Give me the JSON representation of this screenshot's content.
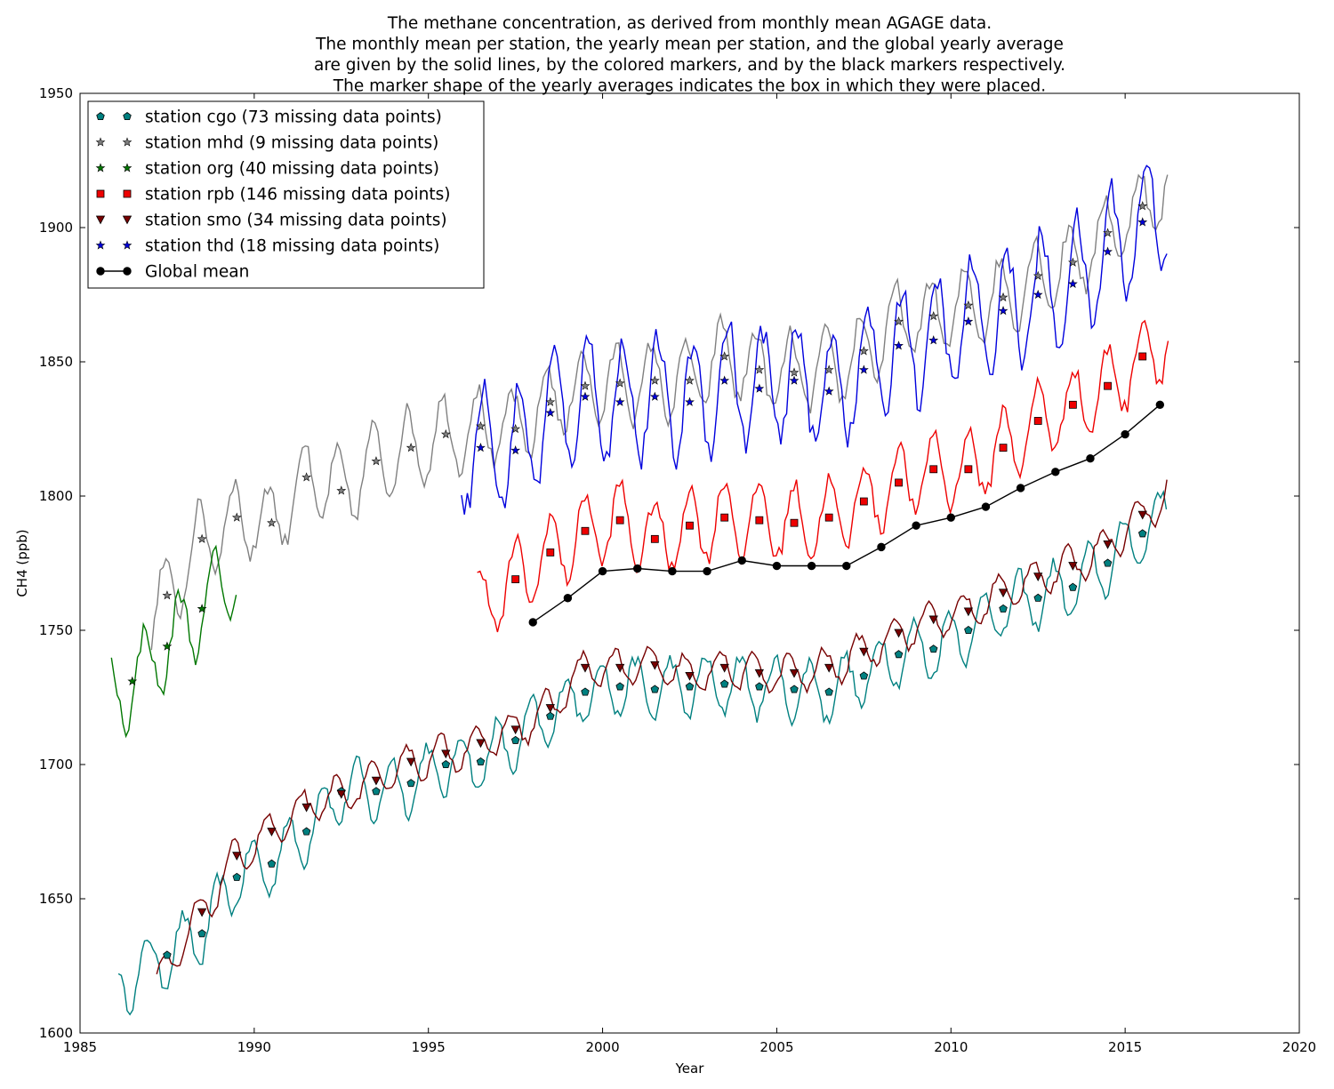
{
  "chart_data": {
    "type": "line",
    "title_lines": [
      "The methane concentration, as derived from monthly mean AGAGE data.",
      "The monthly mean per station, the yearly mean per station, and the global yearly average",
      "are given by the solid lines, by the colored markers, and by the black markers respectively.",
      "The marker shape of the yearly averages indicates the box in which they were placed."
    ],
    "xlabel": "Year",
    "ylabel": "CH4 (ppb)",
    "xlim": [
      1985,
      2020
    ],
    "ylim": [
      1600,
      1950
    ],
    "xticks": [
      "1985",
      "1990",
      "1995",
      "2000",
      "2005",
      "2010",
      "2015",
      "2020"
    ],
    "yticks": [
      "1600",
      "1650",
      "1700",
      "1750",
      "1800",
      "1850",
      "1900",
      "1950"
    ],
    "legend_position": "upper left",
    "grid": false,
    "series": [
      {
        "name": "station cgo (73 missing data points)",
        "color": "#008080",
        "marker": "pentagon",
        "monthly": {
          "start": 1986.1,
          "end": 2016.25,
          "base": 1603,
          "slope": 7.1,
          "amplitude": 11,
          "phase": 0.7,
          "plateau": [
            1999.5,
            2007,
            1727
          ],
          "recent_slope": 7.2
        },
        "yearly": [
          [
            1987.5,
            1629
          ],
          [
            1988.5,
            1637
          ],
          [
            1989.5,
            1658
          ],
          [
            1990.5,
            1663
          ],
          [
            1991.5,
            1675
          ],
          [
            1992.5,
            1690
          ],
          [
            1993.5,
            1690
          ],
          [
            1994.5,
            1693
          ],
          [
            1995.5,
            1700
          ],
          [
            1996.5,
            1701
          ],
          [
            1997.5,
            1709
          ],
          [
            1998.5,
            1718
          ],
          [
            1999.5,
            1727
          ],
          [
            2000.5,
            1729
          ],
          [
            2001.5,
            1728
          ],
          [
            2002.5,
            1729
          ],
          [
            2003.5,
            1730
          ],
          [
            2004.5,
            1729
          ],
          [
            2005.5,
            1728
          ],
          [
            2006.5,
            1727
          ],
          [
            2007.5,
            1733
          ],
          [
            2008.5,
            1741
          ],
          [
            2009.5,
            1743
          ],
          [
            2010.5,
            1750
          ],
          [
            2011.5,
            1758
          ],
          [
            2012.5,
            1762
          ],
          [
            2013.5,
            1766
          ],
          [
            2014.5,
            1775
          ],
          [
            2015.5,
            1786
          ]
        ]
      },
      {
        "name": "station mhd (9 missing data points)",
        "color": "#808080",
        "marker": "star",
        "monthly": {
          "start": 1987.05,
          "end": 2016.25,
          "amplitude": 14,
          "phase": 0.15
        },
        "yearly": [
          [
            1987.5,
            1763
          ],
          [
            1988.5,
            1784
          ],
          [
            1989.5,
            1792
          ],
          [
            1990.5,
            1790
          ],
          [
            1991.5,
            1807
          ],
          [
            1992.5,
            1802
          ],
          [
            1993.5,
            1813
          ],
          [
            1994.5,
            1818
          ],
          [
            1995.5,
            1823
          ],
          [
            1996.5,
            1826
          ],
          [
            1997.5,
            1825
          ],
          [
            1998.5,
            1835
          ],
          [
            1999.5,
            1841
          ],
          [
            2000.5,
            1842
          ],
          [
            2001.5,
            1843
          ],
          [
            2002.5,
            1843
          ],
          [
            2003.5,
            1852
          ],
          [
            2004.5,
            1847
          ],
          [
            2005.5,
            1846
          ],
          [
            2006.5,
            1847
          ],
          [
            2007.5,
            1854
          ],
          [
            2008.5,
            1865
          ],
          [
            2009.5,
            1867
          ],
          [
            2010.5,
            1871
          ],
          [
            2011.5,
            1874
          ],
          [
            2012.5,
            1882
          ],
          [
            2013.5,
            1887
          ],
          [
            2014.5,
            1898
          ],
          [
            2015.5,
            1908
          ]
        ]
      },
      {
        "name": "station org (40 missing data points)",
        "color": "#007700",
        "marker": "star",
        "monthly": {
          "start": 1985.9,
          "end": 1989.5,
          "amplitude": 15,
          "phase": 0.6
        },
        "yearly": [
          [
            1986.5,
            1731
          ],
          [
            1987.5,
            1744
          ],
          [
            1988.5,
            1758
          ]
        ]
      },
      {
        "name": "station rpb (146 missing data points)",
        "color": "#ee0000",
        "marker": "square",
        "monthly": {
          "start": 1996.4,
          "end": 2016.25,
          "amplitude": 14,
          "phase": 0.25
        },
        "yearly": [
          [
            1997.5,
            1769
          ],
          [
            1998.5,
            1779
          ],
          [
            1999.5,
            1787
          ],
          [
            2000.5,
            1791
          ],
          [
            2001.5,
            1784
          ],
          [
            2002.5,
            1789
          ],
          [
            2003.5,
            1792
          ],
          [
            2004.5,
            1791
          ],
          [
            2005.5,
            1790
          ],
          [
            2006.5,
            1792
          ],
          [
            2007.5,
            1798
          ],
          [
            2008.5,
            1805
          ],
          [
            2009.5,
            1810
          ],
          [
            2010.5,
            1810
          ],
          [
            2011.5,
            1818
          ],
          [
            2012.5,
            1828
          ],
          [
            2013.5,
            1834
          ],
          [
            2014.5,
            1841
          ],
          [
            2015.5,
            1852
          ]
        ]
      },
      {
        "name": "station smo (34 missing data points)",
        "color": "#770000",
        "marker": "triangle-down",
        "monthly": {
          "start": 1987.2,
          "end": 2016.25,
          "amplitude": 7,
          "phase": 0.1
        },
        "yearly": [
          [
            1988.5,
            1645
          ],
          [
            1989.5,
            1666
          ],
          [
            1990.5,
            1675
          ],
          [
            1991.5,
            1684
          ],
          [
            1992.5,
            1689
          ],
          [
            1993.5,
            1694
          ],
          [
            1994.5,
            1701
          ],
          [
            1995.5,
            1704
          ],
          [
            1996.5,
            1708
          ],
          [
            1997.5,
            1713
          ],
          [
            1998.5,
            1721
          ],
          [
            1999.5,
            1736
          ],
          [
            2000.5,
            1736
          ],
          [
            2001.5,
            1737
          ],
          [
            2002.5,
            1733
          ],
          [
            2003.5,
            1736
          ],
          [
            2004.5,
            1734
          ],
          [
            2005.5,
            1734
          ],
          [
            2006.5,
            1736
          ],
          [
            2007.5,
            1742
          ],
          [
            2008.5,
            1749
          ],
          [
            2009.5,
            1754
          ],
          [
            2010.5,
            1757
          ],
          [
            2011.5,
            1764
          ],
          [
            2012.5,
            1770
          ],
          [
            2013.5,
            1774
          ],
          [
            2014.5,
            1782
          ],
          [
            2015.5,
            1793
          ]
        ]
      },
      {
        "name": "station thd (18 missing data points)",
        "color": "#0000dd",
        "marker": "star",
        "monthly": {
          "start": 1995.95,
          "end": 2016.25,
          "amplitude": 22,
          "phase": 0.35
        },
        "yearly": [
          [
            1996.5,
            1818
          ],
          [
            1997.5,
            1817
          ],
          [
            1998.5,
            1831
          ],
          [
            1999.5,
            1837
          ],
          [
            2000.5,
            1835
          ],
          [
            2001.5,
            1837
          ],
          [
            2002.5,
            1835
          ],
          [
            2003.5,
            1843
          ],
          [
            2004.5,
            1840
          ],
          [
            2005.5,
            1843
          ],
          [
            2006.5,
            1839
          ],
          [
            2007.5,
            1847
          ],
          [
            2008.5,
            1856
          ],
          [
            2009.5,
            1858
          ],
          [
            2010.5,
            1865
          ],
          [
            2011.5,
            1869
          ],
          [
            2012.5,
            1875
          ],
          [
            2013.5,
            1879
          ],
          [
            2014.5,
            1891
          ],
          [
            2015.5,
            1902
          ]
        ]
      },
      {
        "name": "Global mean",
        "color": "#000000",
        "marker": "circle",
        "values": [
          [
            1998,
            1753
          ],
          [
            1999,
            1762
          ],
          [
            2000,
            1772
          ],
          [
            2001,
            1773
          ],
          [
            2002,
            1772
          ],
          [
            2003,
            1772
          ],
          [
            2004,
            1776
          ],
          [
            2005,
            1774
          ],
          [
            2006,
            1774
          ],
          [
            2007,
            1774
          ],
          [
            2008,
            1781
          ],
          [
            2009,
            1789
          ],
          [
            2010,
            1792
          ],
          [
            2011,
            1796
          ],
          [
            2012,
            1803
          ],
          [
            2013,
            1809
          ],
          [
            2014,
            1814
          ],
          [
            2015,
            1823
          ],
          [
            2016,
            1834
          ]
        ]
      }
    ]
  }
}
